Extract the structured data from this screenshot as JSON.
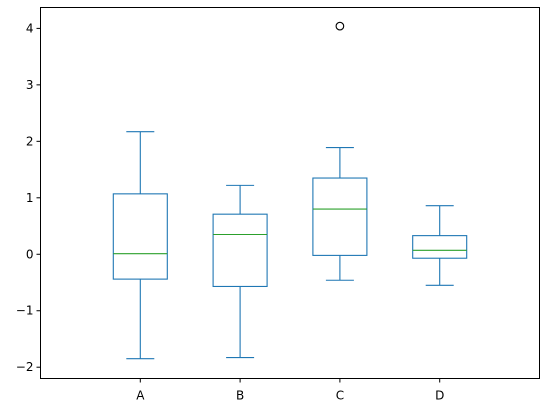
{
  "chart_data": {
    "type": "box",
    "title": "",
    "xlabel": "",
    "ylabel": "",
    "categories": [
      "A",
      "B",
      "C",
      "D"
    ],
    "boxes": [
      {
        "label": "A",
        "whisker_low": -1.85,
        "q1": -0.44,
        "median": 0.01,
        "q3": 1.07,
        "whisker_high": 2.17,
        "fliers": []
      },
      {
        "label": "B",
        "whisker_low": -1.83,
        "q1": -0.57,
        "median": 0.35,
        "q3": 0.71,
        "whisker_high": 1.22,
        "fliers": []
      },
      {
        "label": "C",
        "whisker_low": -0.46,
        "q1": -0.02,
        "median": 0.8,
        "q3": 1.35,
        "whisker_high": 1.89,
        "fliers": [
          4.04
        ]
      },
      {
        "label": "D",
        "whisker_low": -0.55,
        "q1": -0.07,
        "median": 0.07,
        "q3": 0.33,
        "whisker_high": 0.86,
        "fliers": []
      }
    ],
    "ylim": [
      -2.2,
      4.37
    ],
    "yticks": [
      -2,
      -1,
      0,
      1,
      2,
      3,
      4
    ],
    "ytick_labels": [
      "−2",
      "−1",
      "0",
      "1",
      "2",
      "3",
      "4"
    ],
    "grid": false,
    "legend": "none",
    "colors": {
      "box": "#1f77b4",
      "median": "#2ca02c",
      "flier": "#000000",
      "axes": "#000000"
    }
  }
}
